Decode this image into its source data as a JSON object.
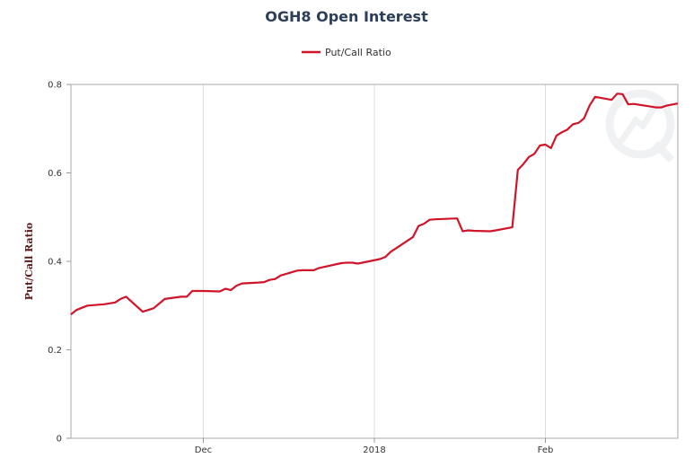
{
  "chart_data": {
    "type": "line",
    "title": "OGH8 Open Interest",
    "xlabel": "",
    "ylabel": "Put/Call Ratio",
    "legend_position": "top-center",
    "grid": {
      "vertical": true,
      "horizontal": false
    },
    "xlim": [
      "2017-11-07",
      "2018-02-25"
    ],
    "ylim": [
      0,
      0.8
    ],
    "y_ticks": [
      {
        "value": 0,
        "label": "0"
      },
      {
        "value": 0.2,
        "label": "0.2"
      },
      {
        "value": 0.4,
        "label": "0.4"
      },
      {
        "value": 0.6,
        "label": "0.6"
      },
      {
        "value": 0.8,
        "label": "0.8"
      }
    ],
    "x_ticks": [
      {
        "date": "2017-12-01",
        "label": "Dec"
      },
      {
        "date": "2018-01-01",
        "label": "2018"
      },
      {
        "date": "2018-02-01",
        "label": "Feb"
      }
    ],
    "series": [
      {
        "name": "Put/Call Ratio",
        "color": "#d0142a",
        "points": [
          [
            "2017-11-07",
            0.28
          ],
          [
            "2017-11-08",
            0.29
          ],
          [
            "2017-11-09",
            0.295
          ],
          [
            "2017-11-10",
            0.3
          ],
          [
            "2017-11-13",
            0.303
          ],
          [
            "2017-11-14",
            0.305
          ],
          [
            "2017-11-15",
            0.307
          ],
          [
            "2017-11-16",
            0.315
          ],
          [
            "2017-11-17",
            0.32
          ],
          [
            "2017-11-20",
            0.286
          ],
          [
            "2017-11-21",
            0.29
          ],
          [
            "2017-11-22",
            0.294
          ],
          [
            "2017-11-24",
            0.315
          ],
          [
            "2017-11-27",
            0.32
          ],
          [
            "2017-11-28",
            0.32
          ],
          [
            "2017-11-29",
            0.333
          ],
          [
            "2017-12-01",
            0.333
          ],
          [
            "2017-12-04",
            0.332
          ],
          [
            "2017-12-05",
            0.338
          ],
          [
            "2017-12-06",
            0.335
          ],
          [
            "2017-12-07",
            0.345
          ],
          [
            "2017-12-08",
            0.35
          ],
          [
            "2017-12-11",
            0.352
          ],
          [
            "2017-12-12",
            0.353
          ],
          [
            "2017-12-13",
            0.358
          ],
          [
            "2017-12-14",
            0.36
          ],
          [
            "2017-12-15",
            0.368
          ],
          [
            "2017-12-18",
            0.379
          ],
          [
            "2017-12-19",
            0.38
          ],
          [
            "2017-12-20",
            0.38
          ],
          [
            "2017-12-21",
            0.38
          ],
          [
            "2017-12-22",
            0.385
          ],
          [
            "2017-12-26",
            0.396
          ],
          [
            "2017-12-27",
            0.397
          ],
          [
            "2017-12-28",
            0.397
          ],
          [
            "2017-12-29",
            0.395
          ],
          [
            "2018-01-02",
            0.405
          ],
          [
            "2018-01-03",
            0.41
          ],
          [
            "2018-01-04",
            0.422
          ],
          [
            "2018-01-05",
            0.43
          ],
          [
            "2018-01-08",
            0.455
          ],
          [
            "2018-01-09",
            0.48
          ],
          [
            "2018-01-10",
            0.485
          ],
          [
            "2018-01-11",
            0.494
          ],
          [
            "2018-01-12",
            0.495
          ],
          [
            "2018-01-16",
            0.497
          ],
          [
            "2018-01-17",
            0.468
          ],
          [
            "2018-01-18",
            0.47
          ],
          [
            "2018-01-19",
            0.469
          ],
          [
            "2018-01-22",
            0.468
          ],
          [
            "2018-01-23",
            0.47
          ],
          [
            "2018-01-26",
            0.477
          ],
          [
            "2018-01-27",
            0.607
          ],
          [
            "2018-01-28",
            0.62
          ],
          [
            "2018-01-29",
            0.636
          ],
          [
            "2018-01-30",
            0.643
          ],
          [
            "2018-01-31",
            0.662
          ],
          [
            "2018-02-01",
            0.664
          ],
          [
            "2018-02-02",
            0.656
          ],
          [
            "2018-02-03",
            0.684
          ],
          [
            "2018-02-04",
            0.692
          ],
          [
            "2018-02-05",
            0.698
          ],
          [
            "2018-02-06",
            0.71
          ],
          [
            "2018-02-07",
            0.713
          ],
          [
            "2018-02-08",
            0.723
          ],
          [
            "2018-02-09",
            0.752
          ],
          [
            "2018-02-10",
            0.772
          ],
          [
            "2018-02-13",
            0.765
          ],
          [
            "2018-02-14",
            0.779
          ],
          [
            "2018-02-15",
            0.778
          ],
          [
            "2018-02-16",
            0.755
          ],
          [
            "2018-02-17",
            0.756
          ],
          [
            "2018-02-20",
            0.75
          ],
          [
            "2018-02-21",
            0.748
          ],
          [
            "2018-02-22",
            0.748
          ],
          [
            "2018-02-23",
            0.752
          ],
          [
            "2018-02-25",
            0.757
          ]
        ]
      }
    ]
  }
}
